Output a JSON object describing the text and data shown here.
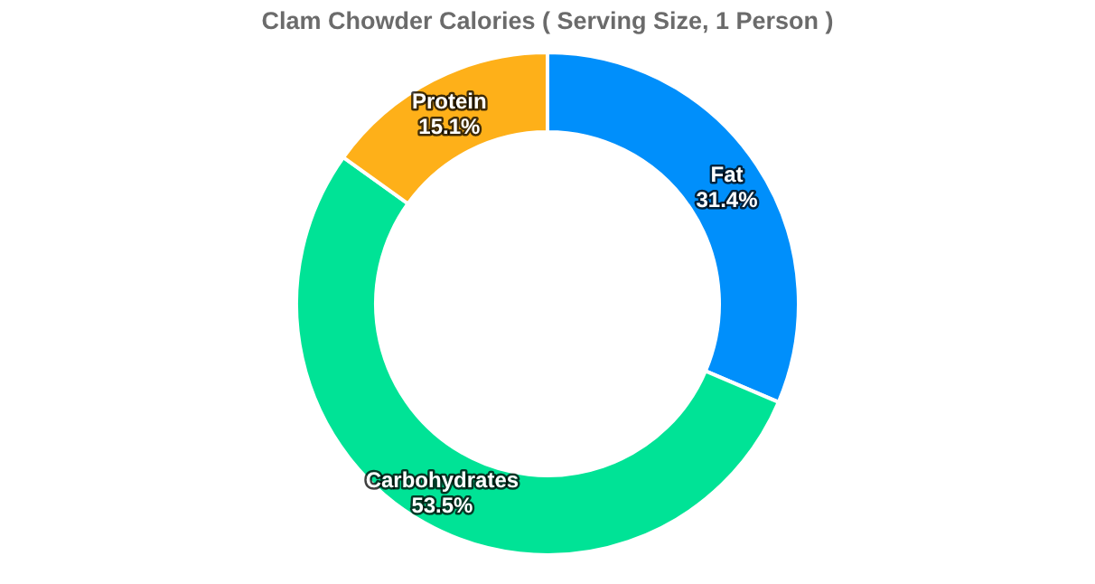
{
  "chart_data": {
    "type": "donut",
    "title": "Clam Chowder Calories ( Serving Size, 1 Person )",
    "categories": [
      "Fat",
      "Carbohydrates",
      "Protein"
    ],
    "values": [
      31.4,
      53.5,
      15.1
    ],
    "value_labels": [
      "31.4%",
      "53.5%",
      "15.1%"
    ],
    "colors": [
      "#008ffb",
      "#00e396",
      "#feb019"
    ],
    "legend": false
  }
}
